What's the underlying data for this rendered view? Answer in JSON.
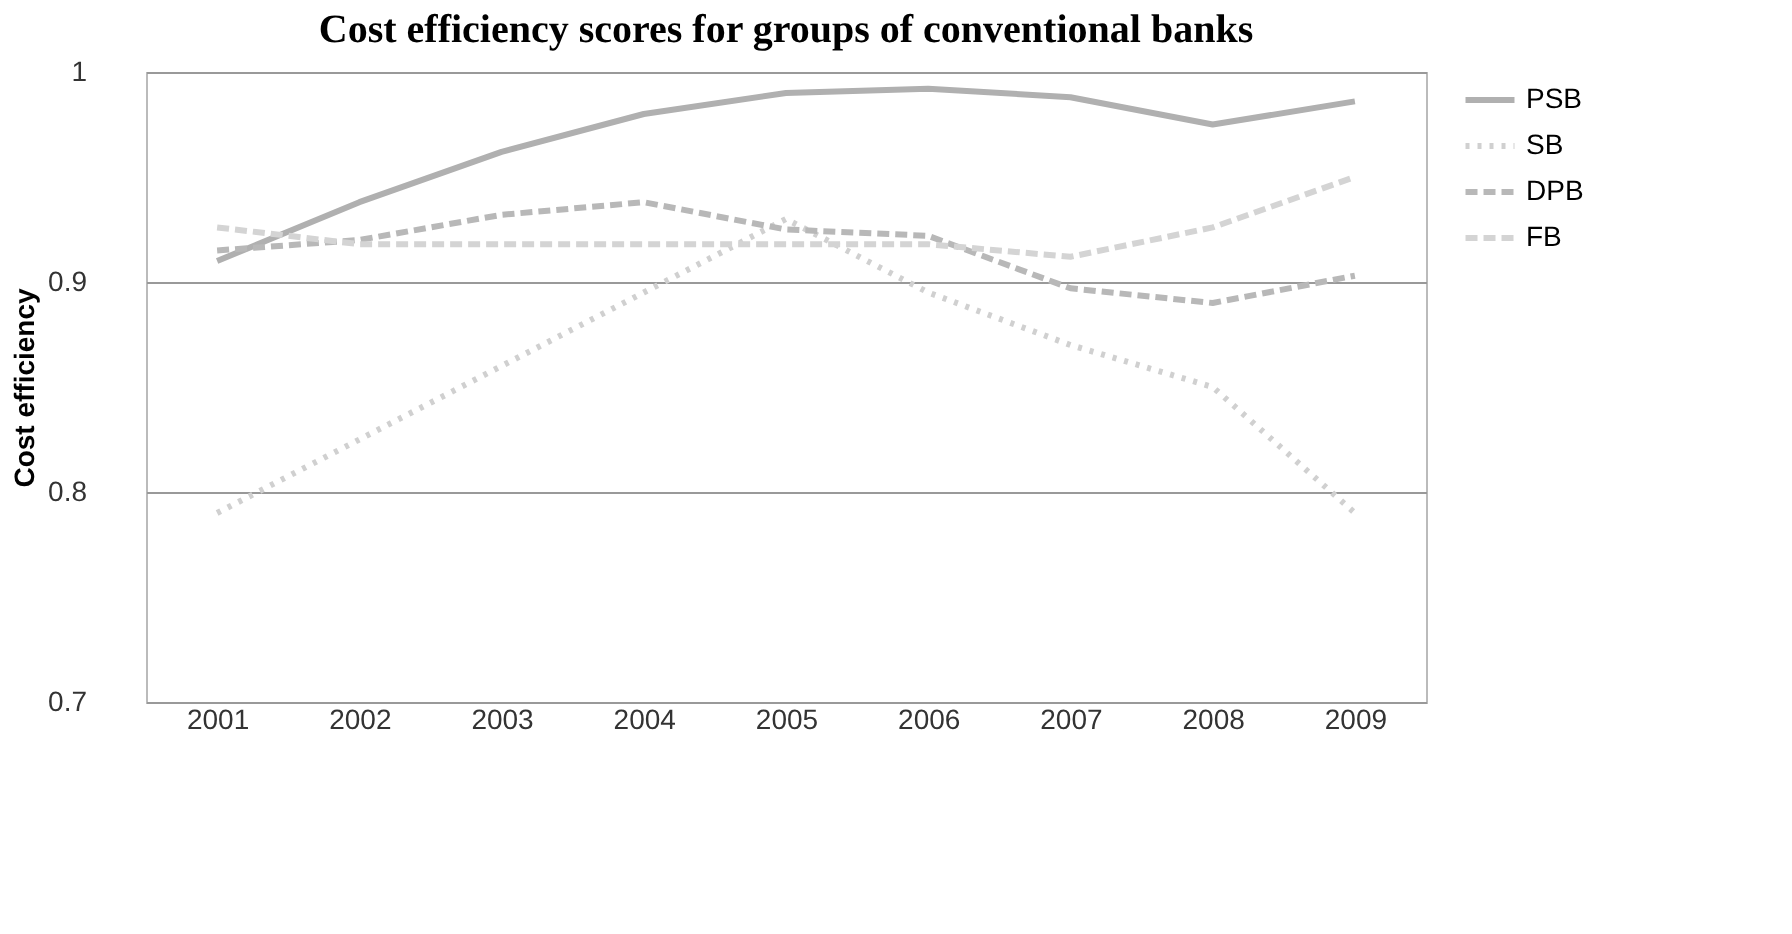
{
  "chart_data": {
    "type": "line",
    "title": "Cost efficiency scores for groups of conventional banks",
    "ylabel": "Cost efficiency",
    "categories": [
      "2001",
      "2002",
      "2003",
      "2004",
      "2005",
      "2006",
      "2007",
      "2008",
      "2009"
    ],
    "series": [
      {
        "name": "PSB",
        "color": "#b0b0b0",
        "line_style": "solid",
        "values": [
          0.91,
          0.938,
          0.962,
          0.98,
          0.99,
          0.992,
          0.988,
          0.975,
          0.986
        ]
      },
      {
        "name": "SB",
        "color": "#d0d0d0",
        "line_style": "dotted",
        "values": [
          0.79,
          0.825,
          0.86,
          0.895,
          0.93,
          0.895,
          0.87,
          0.85,
          0.79
        ]
      },
      {
        "name": "DPB",
        "color": "#b8b8b8",
        "line_style": "dashed",
        "values": [
          0.915,
          0.92,
          0.932,
          0.938,
          0.925,
          0.922,
          0.897,
          0.89,
          0.903
        ]
      },
      {
        "name": "FB",
        "color": "#d4d4d4",
        "line_style": "dashed",
        "values": [
          0.926,
          0.918,
          0.918,
          0.918,
          0.918,
          0.918,
          0.912,
          0.926,
          0.95
        ]
      }
    ],
    "ylim": [
      0.7,
      1
    ],
    "yticks": [
      0.7,
      0.8,
      0.9,
      1
    ],
    "grid": "y",
    "legend": "right",
    "marker": "none"
  }
}
